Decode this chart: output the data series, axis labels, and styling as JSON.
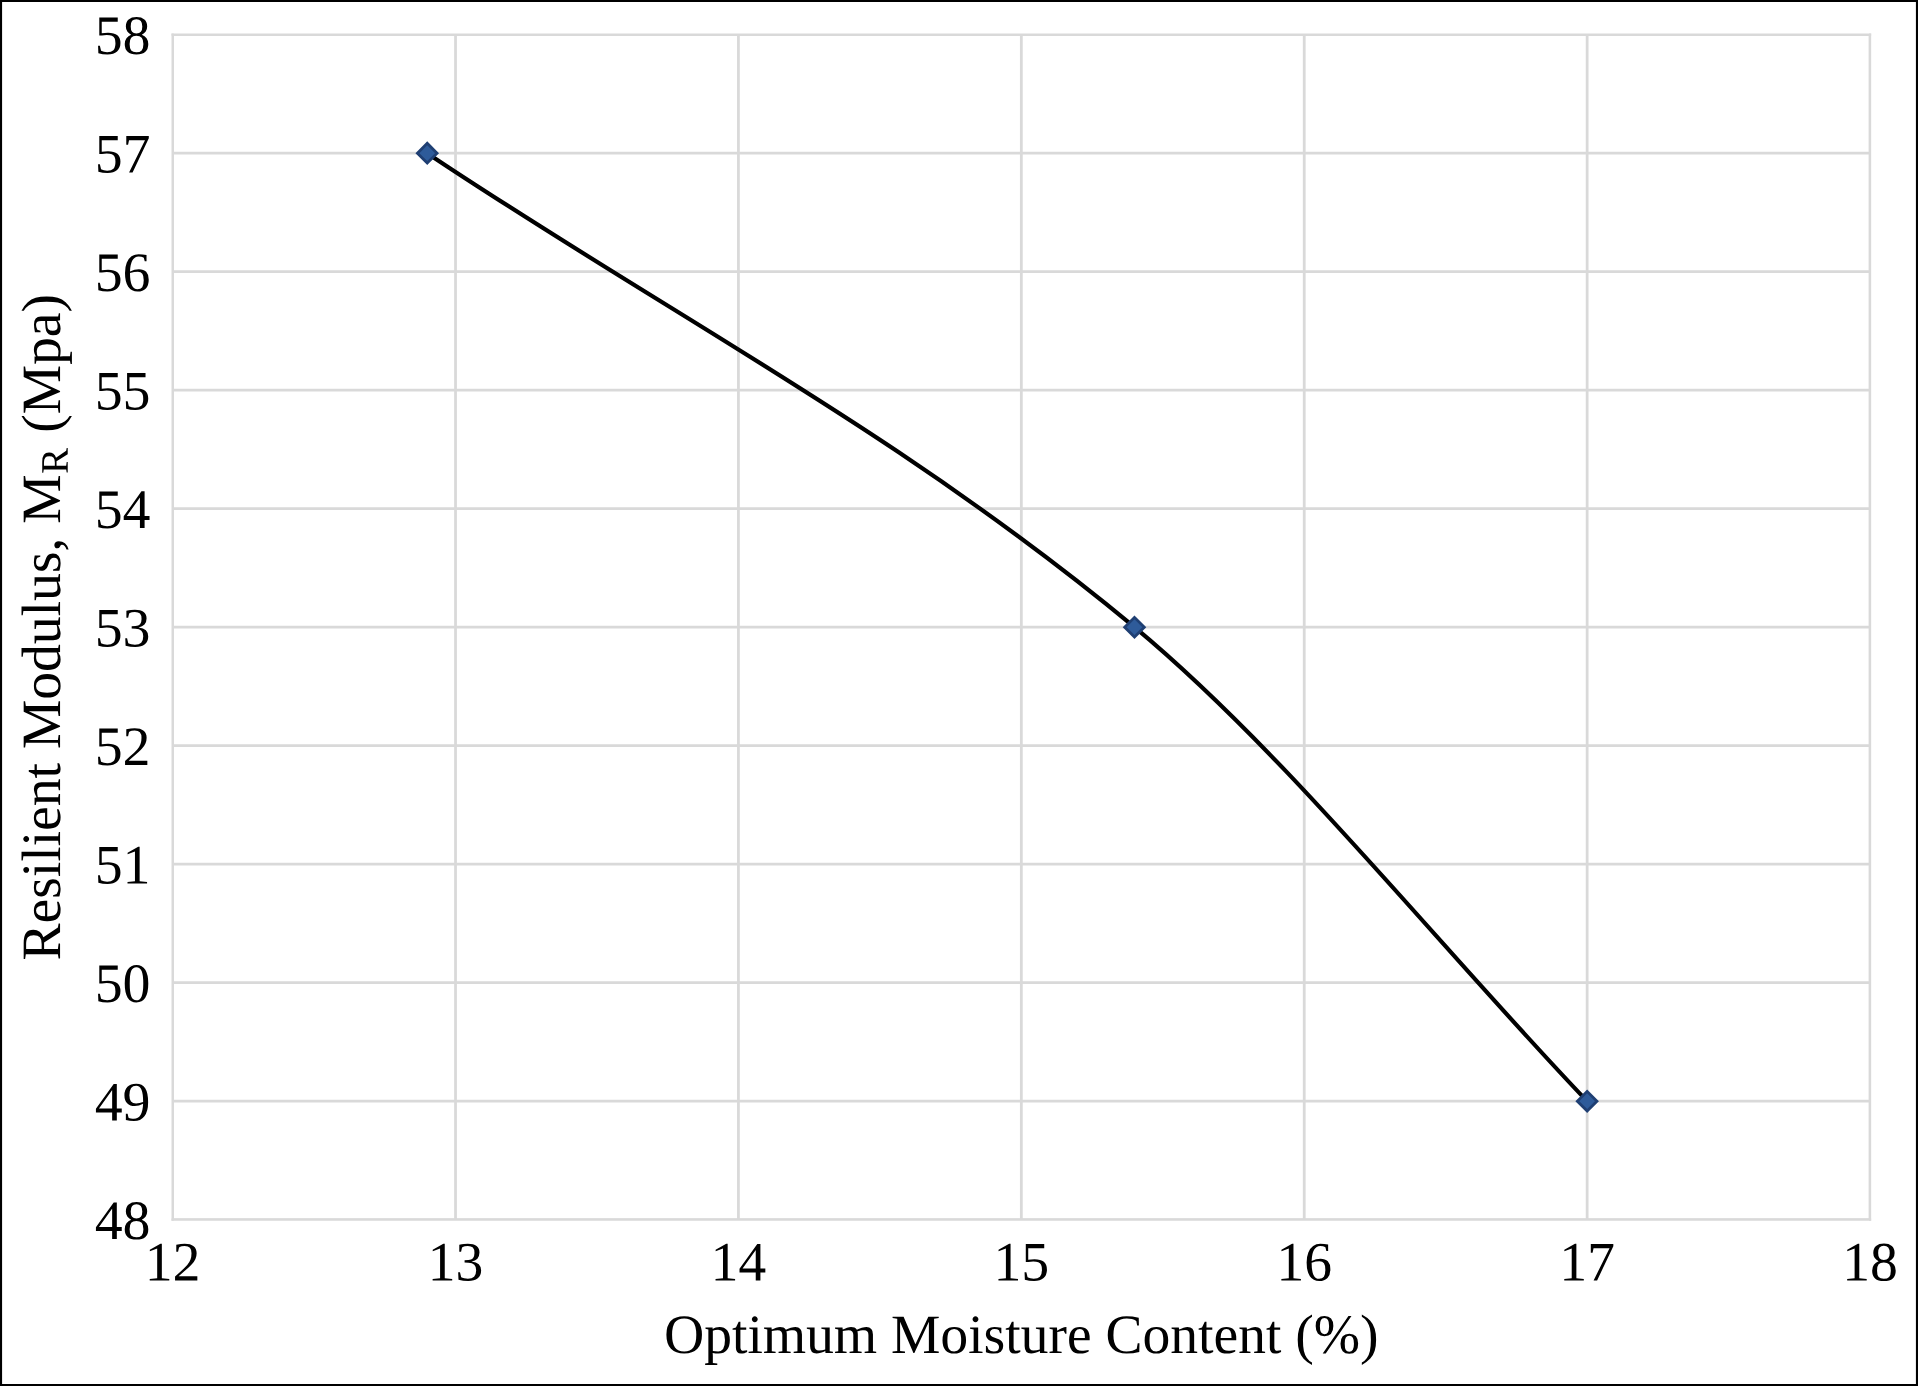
{
  "chart_data": {
    "type": "line",
    "xlabel": "Optimum Moisture Content (%)",
    "ylabel": "Resilient Modulus, M$_{R}$ (Mpa)",
    "x": [
      12.9,
      15.4,
      17
    ],
    "series": [
      {
        "color": "#000000",
        "values": [
          57,
          53,
          49
        ]
      }
    ],
    "xlim": [
      12,
      18
    ],
    "xticks": [
      12,
      13,
      14,
      15,
      16,
      17,
      18
    ],
    "ylim": [
      48,
      58
    ],
    "yticks": [
      48,
      49,
      50,
      51,
      52,
      53,
      54,
      55,
      56,
      57,
      58
    ],
    "grid": true,
    "marker": "diamond",
    "line_style": "solid"
  }
}
